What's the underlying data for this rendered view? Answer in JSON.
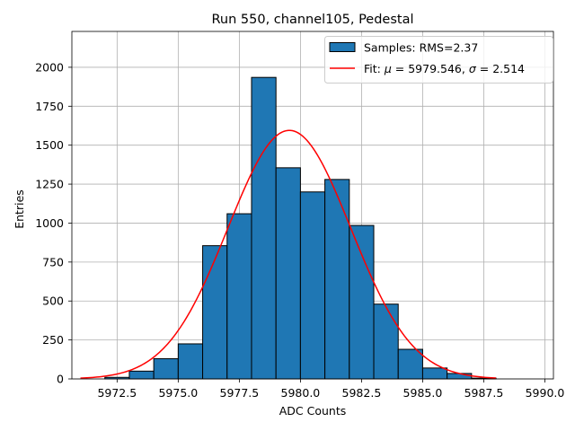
{
  "chart_data": {
    "type": "bar",
    "title": "Run 550, channel105, Pedestal",
    "xlabel": "ADC Counts",
    "ylabel": "Entries",
    "xlim": [
      5970.65,
      5990.35
    ],
    "ylim": [
      0,
      2230
    ],
    "xticks": [
      5972.5,
      5975.0,
      5977.5,
      5980.0,
      5982.5,
      5985.0,
      5987.5,
      5990.0
    ],
    "xtick_labels": [
      "5972.5",
      "5975.0",
      "5977.5",
      "5980.0",
      "5982.5",
      "5985.0",
      "5987.5",
      "5990.0"
    ],
    "yticks": [
      0,
      250,
      500,
      750,
      1000,
      1250,
      1500,
      1750,
      2000
    ],
    "ytick_labels": [
      "0",
      "250",
      "500",
      "750",
      "1000",
      "1250",
      "1500",
      "1750",
      "2000"
    ],
    "grid": true,
    "legend_position": "top-right",
    "histogram": {
      "name": "Samples: RMS=2.37",
      "color": "#1f77b4",
      "edgecolor": "#000000",
      "bins": [
        {
          "x0": 5972,
          "x1": 5973,
          "value": 10
        },
        {
          "x0": 5973,
          "x1": 5974,
          "value": 50
        },
        {
          "x0": 5974,
          "x1": 5975,
          "value": 130
        },
        {
          "x0": 5975,
          "x1": 5976,
          "value": 225
        },
        {
          "x0": 5976,
          "x1": 5977,
          "value": 855
        },
        {
          "x0": 5977,
          "x1": 5978,
          "value": 1060
        },
        {
          "x0": 5978,
          "x1": 5979,
          "value": 1935
        },
        {
          "x0": 5979,
          "x1": 5980,
          "value": 1355
        },
        {
          "x0": 5980,
          "x1": 5981,
          "value": 1200
        },
        {
          "x0": 5981,
          "x1": 5982,
          "value": 1280
        },
        {
          "x0": 5982,
          "x1": 5983,
          "value": 985
        },
        {
          "x0": 5983,
          "x1": 5984,
          "value": 480
        },
        {
          "x0": 5984,
          "x1": 5985,
          "value": 190
        },
        {
          "x0": 5985,
          "x1": 5986,
          "value": 70
        },
        {
          "x0": 5986,
          "x1": 5987,
          "value": 35
        },
        {
          "x0": 5987,
          "x1": 5988,
          "value": 5
        }
      ]
    },
    "fit": {
      "name_prefix": "Fit: ",
      "mu_symbol": "μ",
      "eq": " = ",
      "mu_value": "5979.546",
      "sep": ", ",
      "sigma_symbol": "σ",
      "sigma_value": "2.514",
      "color": "#ff0000",
      "mu": 5979.546,
      "sigma": 2.514,
      "amplitude": 1595,
      "x_range": [
        5971,
        5988
      ]
    }
  }
}
